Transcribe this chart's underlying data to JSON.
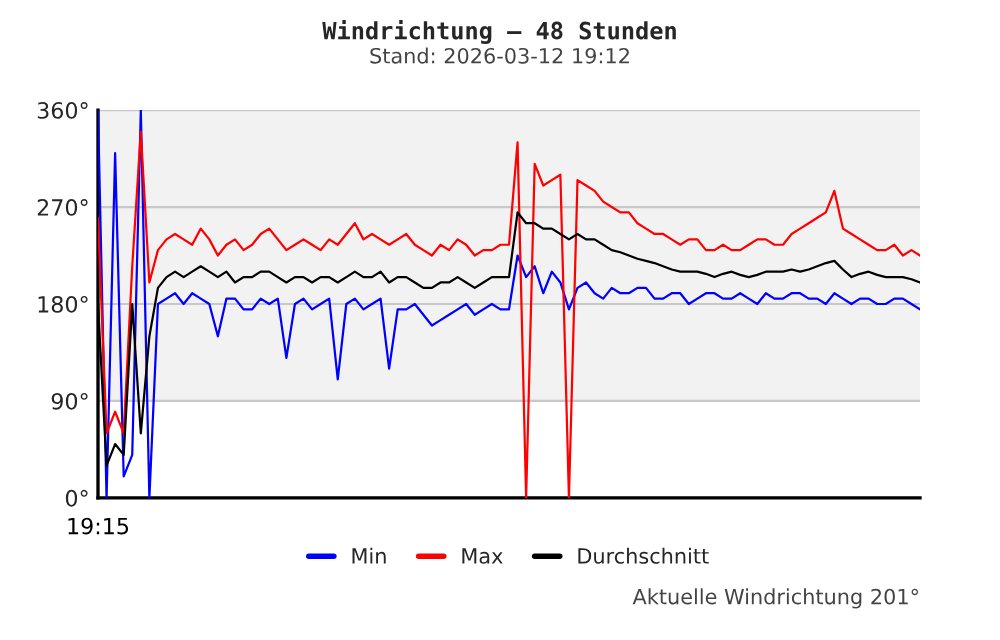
{
  "chart_data": {
    "type": "line",
    "title": "Windrichtung – 48 Stunden",
    "subtitle": "Stand: 2026-03-12 19:12",
    "annotations": [
      "19:15",
      "Aktuelle Windrichtung 201°"
    ],
    "categories": [
      null,
      null,
      null,
      null,
      null,
      null,
      null,
      null,
      null,
      null,
      null,
      null,
      null,
      null,
      null,
      null,
      null,
      null,
      null,
      null,
      null,
      null,
      null,
      null,
      null,
      null,
      null,
      null,
      null,
      null,
      null,
      null,
      null,
      null,
      null,
      null,
      null,
      null,
      null,
      null,
      null,
      null,
      null,
      null,
      null,
      null,
      null,
      null,
      null,
      null,
      null,
      null,
      null,
      null,
      null,
      null,
      null,
      null,
      null,
      null,
      null,
      null,
      null,
      null,
      null,
      null,
      null,
      null,
      null,
      null,
      null,
      null,
      null,
      null,
      null,
      null,
      null,
      null,
      null,
      null,
      null,
      null,
      null,
      null,
      null,
      null,
      null,
      null,
      null,
      null,
      null,
      null,
      null,
      null,
      null,
      null,
      null
    ],
    "series": [
      {
        "name": "Min",
        "color": "#0000ff",
        "values": [
          360,
          0,
          320,
          20,
          40,
          360,
          0,
          180,
          185,
          190,
          180,
          190,
          185,
          180,
          150,
          185,
          185,
          175,
          175,
          185,
          180,
          185,
          130,
          180,
          185,
          175,
          180,
          185,
          110,
          180,
          185,
          175,
          180,
          185,
          120,
          175,
          175,
          180,
          170,
          160,
          165,
          170,
          175,
          180,
          170,
          175,
          180,
          175,
          175,
          225,
          205,
          215,
          190,
          210,
          200,
          175,
          195,
          200,
          190,
          185,
          195,
          190,
          190,
          195,
          195,
          185,
          185,
          190,
          190,
          180,
          185,
          190,
          190,
          185,
          185,
          190,
          185,
          180,
          190,
          185,
          185,
          190,
          190,
          185,
          185,
          180,
          190,
          185,
          180,
          185,
          185,
          180,
          180,
          185,
          185,
          180,
          175
        ]
      },
      {
        "name": "Max",
        "color": "#ff0000",
        "values": [
          260,
          60,
          80,
          60,
          215,
          340,
          200,
          230,
          240,
          245,
          240,
          235,
          250,
          240,
          225,
          235,
          240,
          230,
          235,
          245,
          250,
          240,
          230,
          235,
          240,
          235,
          230,
          240,
          235,
          245,
          255,
          240,
          245,
          240,
          235,
          240,
          245,
          235,
          230,
          225,
          235,
          230,
          240,
          235,
          225,
          230,
          230,
          235,
          235,
          330,
          0,
          310,
          290,
          295,
          300,
          0,
          295,
          290,
          285,
          275,
          270,
          265,
          265,
          255,
          250,
          245,
          245,
          240,
          235,
          240,
          240,
          230,
          230,
          235,
          230,
          230,
          235,
          240,
          240,
          235,
          235,
          245,
          250,
          255,
          260,
          265,
          285,
          250,
          245,
          240,
          235,
          230,
          230,
          235,
          225,
          230,
          225
        ]
      },
      {
        "name": "Durchschnitt",
        "color": "#000000",
        "values": [
          180,
          30,
          50,
          40,
          180,
          60,
          150,
          195,
          205,
          210,
          205,
          210,
          215,
          210,
          205,
          210,
          200,
          205,
          205,
          210,
          210,
          205,
          200,
          205,
          205,
          200,
          205,
          205,
          200,
          205,
          210,
          205,
          205,
          210,
          200,
          205,
          205,
          200,
          195,
          195,
          200,
          200,
          205,
          200,
          195,
          200,
          205,
          205,
          205,
          265,
          255,
          255,
          250,
          250,
          245,
          240,
          245,
          240,
          240,
          235,
          230,
          228,
          225,
          222,
          220,
          218,
          215,
          212,
          210,
          210,
          210,
          208,
          205,
          208,
          210,
          207,
          205,
          207,
          210,
          210,
          210,
          212,
          210,
          212,
          215,
          218,
          220,
          212,
          205,
          208,
          210,
          207,
          205,
          205,
          205,
          203,
          200
        ]
      }
    ],
    "ylim": [
      0,
      360
    ],
    "yticks": [
      {
        "value": 0,
        "label": "0°"
      },
      {
        "value": 90,
        "label": "90°"
      },
      {
        "value": 180,
        "label": "180°"
      },
      {
        "value": 270,
        "label": "270°"
      },
      {
        "value": 360,
        "label": "360°"
      }
    ],
    "bands": [
      {
        "axis": "y",
        "from": 90,
        "to": 360,
        "label": null,
        "color": "#f2f2f2"
      }
    ],
    "grid": "y",
    "legend": "bottom",
    "line_style": "solid",
    "marker": "none"
  }
}
